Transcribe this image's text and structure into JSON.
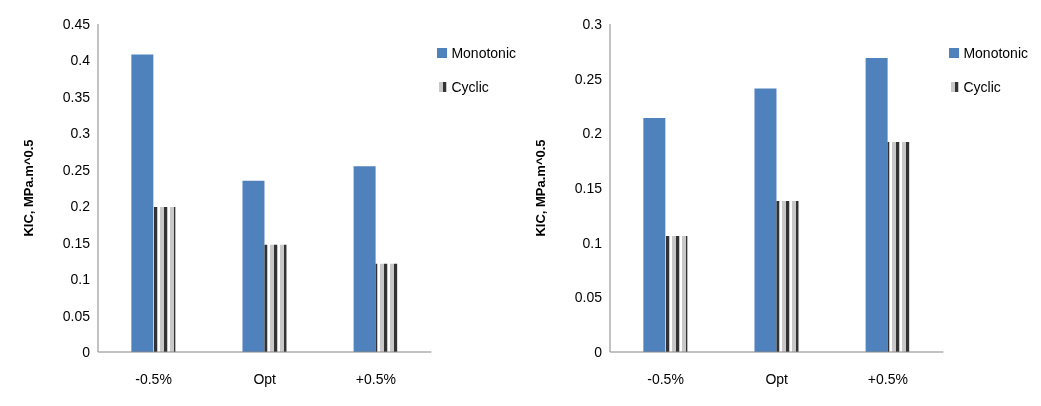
{
  "chart_data": [
    {
      "type": "bar",
      "categories": [
        "-0.5%",
        "Opt",
        "+0.5%"
      ],
      "ylabel": "KIC, MPa.m^0.5",
      "ylim": [
        0,
        0.45
      ],
      "yticks": [
        0,
        0.05,
        0.1,
        0.15,
        0.2,
        0.25,
        0.3,
        0.35,
        0.4,
        0.45
      ],
      "grid": false,
      "legend": "top right",
      "series": [
        {
          "name": "Monotonic",
          "color": "#4f81bd",
          "values": [
            0.408,
            0.235,
            0.255
          ]
        },
        {
          "name": "Cyclic",
          "color": "#c8c8c8",
          "values": [
            0.199,
            0.147,
            0.121
          ]
        }
      ]
    },
    {
      "type": "bar",
      "categories": [
        "-0.5%",
        "Opt",
        "+0.5%"
      ],
      "ylabel": "KIC, MPa.m^0.5",
      "ylim": [
        0,
        0.3
      ],
      "yticks": [
        0,
        0.05,
        0.1,
        0.15,
        0.2,
        0.25,
        0.3
      ],
      "grid": false,
      "legend": "top right",
      "series": [
        {
          "name": "Monotonic",
          "color": "#4f81bd",
          "values": [
            0.214,
            0.241,
            0.269
          ]
        },
        {
          "name": "Cyclic",
          "color": "#c8c8c8",
          "values": [
            0.106,
            0.138,
            0.192
          ]
        }
      ]
    }
  ]
}
